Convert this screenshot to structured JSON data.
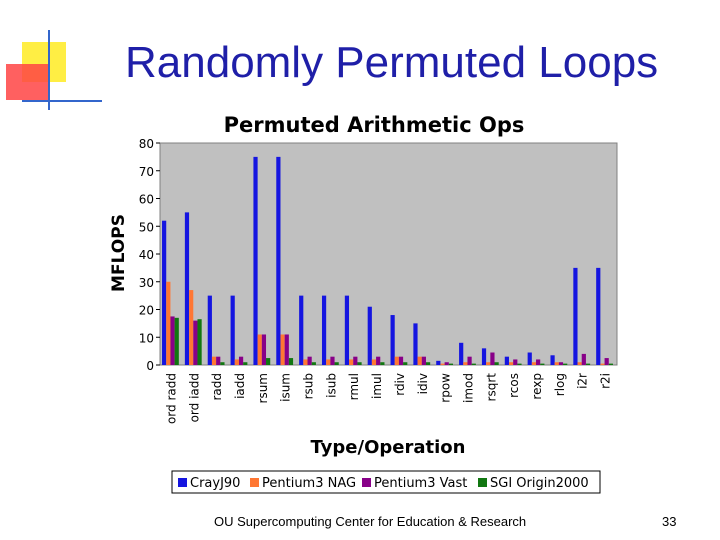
{
  "slide": {
    "title": "Randomly Permuted Loops",
    "footer": "OU Supercomputing Center for Education & Research",
    "page_number": "33"
  },
  "colors": {
    "title": "#1f1fa8",
    "deco_yellow": "#ffee44",
    "deco_red": "#ff3333",
    "deco_blue": "#3366cc"
  },
  "chart_data": {
    "type": "bar",
    "title": "Permuted Arithmetic Ops",
    "xlabel": "Type/Operation",
    "ylabel": "MFLOPS",
    "ylim": [
      0,
      80
    ],
    "yticks": [
      0,
      10,
      20,
      30,
      40,
      50,
      60,
      70,
      80
    ],
    "grid": false,
    "legend": "bottom",
    "categories": [
      "ord radd",
      "ord iadd",
      "radd",
      "iadd",
      "rsum",
      "isum",
      "rsub",
      "isub",
      "rmul",
      "imul",
      "rdiv",
      "idiv",
      "rpow",
      "imod",
      "rsqrt",
      "rcos",
      "rexp",
      "rlog",
      "i2r",
      "r2i"
    ],
    "series": [
      {
        "name": "CrayJ90",
        "color": "#1515e0",
        "values": [
          52,
          55,
          25,
          25,
          75,
          75,
          25,
          25,
          25,
          21,
          18,
          15,
          1.5,
          8,
          6,
          3,
          4.5,
          3.5,
          35,
          35
        ]
      },
      {
        "name": "Pentium3 NAG",
        "color": "#ff7733",
        "values": [
          30,
          27,
          3,
          2,
          11,
          11,
          2,
          2,
          2,
          2,
          3,
          3,
          0.5,
          1,
          1,
          1,
          1,
          1,
          1,
          0.5
        ]
      },
      {
        "name": "Pentium3 Vast",
        "color": "#880088",
        "values": [
          17.5,
          16,
          3,
          3,
          11,
          11,
          3,
          3,
          3,
          3,
          3,
          3,
          1,
          3,
          4.5,
          2,
          2,
          1,
          4,
          2.5
        ]
      },
      {
        "name": "SGI Origin2000",
        "color": "#117711",
        "values": [
          17,
          16.5,
          1,
          1,
          2.5,
          2.5,
          1,
          1,
          1,
          1,
          1,
          1,
          0.5,
          0.5,
          1,
          0.5,
          0.5,
          0.5,
          0.5,
          0.5
        ]
      }
    ]
  }
}
